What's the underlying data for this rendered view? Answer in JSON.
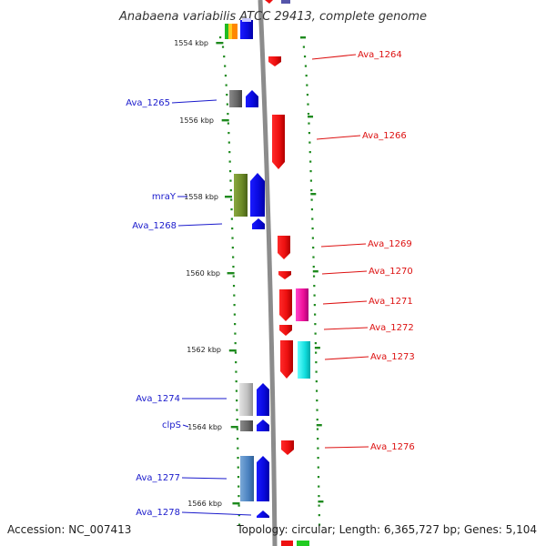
{
  "header": {
    "title": "Anabaena variabilis ATCC 29413, complete genome"
  },
  "footer": {
    "accession": "Accession: NC_007413",
    "summary": "Topology: circular; Length: 6,365,727 bp; Genes: 5,104"
  },
  "colors": {
    "backbone": "#8c8c8c",
    "forward": "#1010ee",
    "reverse": "#ee1111",
    "tick_dots": "#1e8a1e",
    "label_left": "#1a1acc",
    "label_right": "#dd1111"
  },
  "map": {
    "ticks": [
      "1554 kbp",
      "1556 kbp",
      "1558 kbp",
      "1560 kbp",
      "1562 kbp",
      "1564 kbp",
      "1566 kbp"
    ],
    "left_labels": [
      "Ava_1265",
      "mraY",
      "Ava_1268",
      "Ava_1274",
      "clpS",
      "Ava_1277",
      "Ava_1278"
    ],
    "right_labels": [
      "Ava_1264",
      "Ava_1266",
      "Ava_1269",
      "Ava_1270",
      "Ava_1271",
      "Ava_1272",
      "Ava_1273",
      "Ava_1276"
    ]
  }
}
